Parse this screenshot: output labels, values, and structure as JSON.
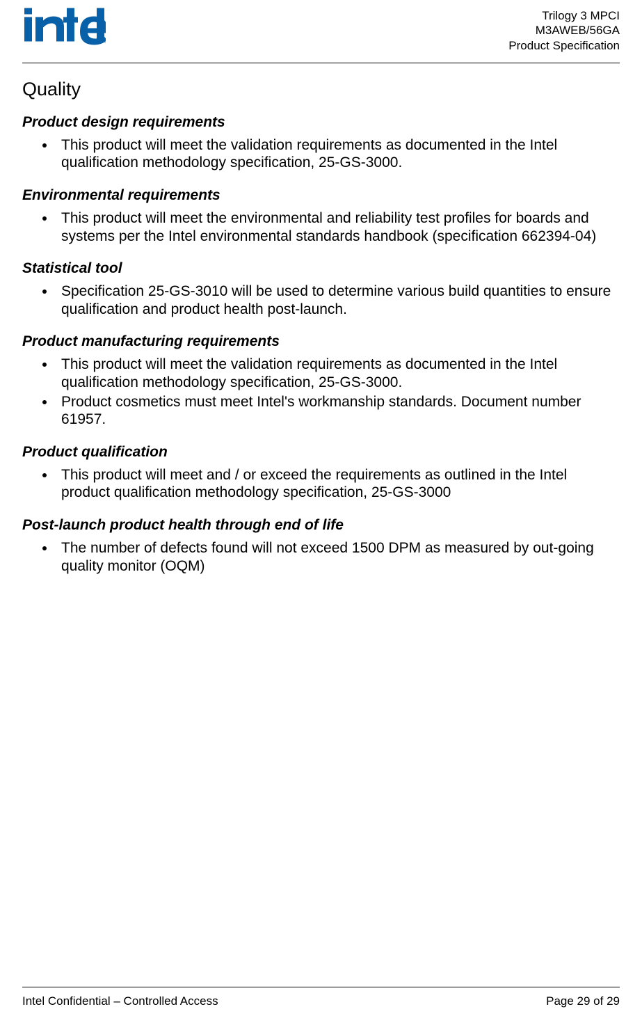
{
  "header": {
    "line1": "Trilogy 3 MPCI",
    "line2": "M3AWEB/56GA",
    "line3": "Product Specification"
  },
  "logo": {
    "color": "#0860a8",
    "registered_mark": "®"
  },
  "title": "Quality",
  "sections": [
    {
      "heading": "Product design requirements",
      "bullets": [
        "This product will meet the validation requirements as documented in the Intel qualification methodology specification, 25-GS-3000."
      ]
    },
    {
      "heading": "Environmental requirements",
      "bullets": [
        "This product will meet the environmental and reliability test profiles for boards and systems per the Intel environmental standards handbook (specification 662394-04)"
      ]
    },
    {
      "heading": "Statistical tool",
      "bullets": [
        "Specification 25-GS-3010 will be used to determine various build quantities to ensure qualification and product health post-launch."
      ]
    },
    {
      "heading": "Product manufacturing requirements",
      "bullets": [
        "This product will meet the validation requirements as documented in the Intel qualification methodology specification, 25-GS-3000.",
        "Product cosmetics must meet Intel's workmanship standards. Document number 61957."
      ]
    },
    {
      "heading": "Product qualification",
      "bullets": [
        "This product will meet and / or exceed the requirements as outlined in the Intel product qualification methodology specification, 25-GS-3000"
      ]
    },
    {
      "heading": "Post-launch product health through end of life",
      "bullets": [
        "The number of defects found will not exceed 1500 DPM as measured by out-going quality monitor (OQM)"
      ]
    }
  ],
  "footer": {
    "left": "Intel Confidential – Controlled Access",
    "right": "Page 29 of 29"
  }
}
